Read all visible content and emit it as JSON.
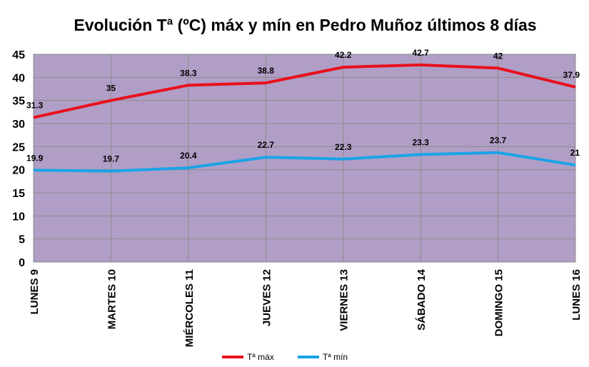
{
  "chart_data": {
    "type": "line",
    "title": "Evolución Tª (ºC) máx y mín en Pedro Muñoz últimos 8 días",
    "categories": [
      "LUNES 9",
      "MARTES 10",
      "MIÉRCOLES 11",
      "JUEVES 12",
      "VIERNES 13",
      "SÁBADO 14",
      "DOMINGO 15",
      "LUNES 16"
    ],
    "series": [
      {
        "name": "Tª máx",
        "values": [
          31.3,
          35,
          38.3,
          38.8,
          42.2,
          42.7,
          42,
          37.9
        ],
        "color": "#e8101c"
      },
      {
        "name": "Tª mín",
        "values": [
          19.9,
          19.7,
          20.4,
          22.7,
          22.3,
          23.3,
          23.7,
          21
        ],
        "color": "#1aa3e6"
      }
    ],
    "ylim": [
      0,
      45
    ],
    "yticks": [
      0,
      5,
      10,
      15,
      20,
      25,
      30,
      35,
      40,
      45
    ],
    "grid": true,
    "legend": "bottom",
    "plot_background": "#b09ec6"
  }
}
